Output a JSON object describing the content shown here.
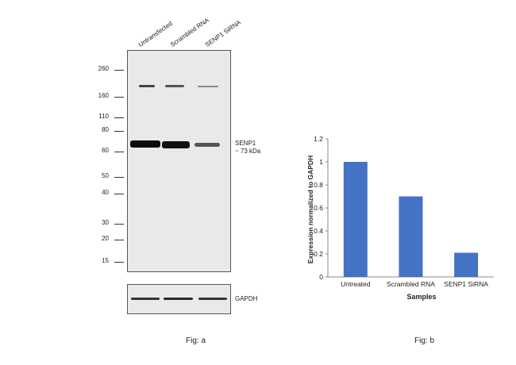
{
  "figure_a": {
    "lane_labels": [
      "Untransfected",
      "Scrambled RNA",
      "SENP1 SiRNA"
    ],
    "mw_markers": [
      "260",
      "160",
      "110",
      "80",
      "60",
      "50",
      "40",
      "30",
      "20",
      "15"
    ],
    "target_label_line1": "SENP1",
    "target_label_line2": "~ 73 kDa",
    "loading_label": "GAPDH",
    "caption": "Fig: a"
  },
  "figure_b": {
    "caption": "Fig: b"
  },
  "chart_data": {
    "type": "bar",
    "categories": [
      "Untreated",
      "Scrambled RNA",
      "SENP1 SiRNA"
    ],
    "values": [
      1.0,
      0.7,
      0.21
    ],
    "title": "",
    "xlabel": "Samples",
    "ylabel": "Expression normalized to GAPDH",
    "ylim": [
      0,
      1.2
    ],
    "yticks": [
      "0",
      "0.2",
      "0.4",
      "0.6",
      "0.8",
      "1",
      "1.2"
    ],
    "bar_color": "#4472C4",
    "grid": false,
    "legend": "none"
  }
}
